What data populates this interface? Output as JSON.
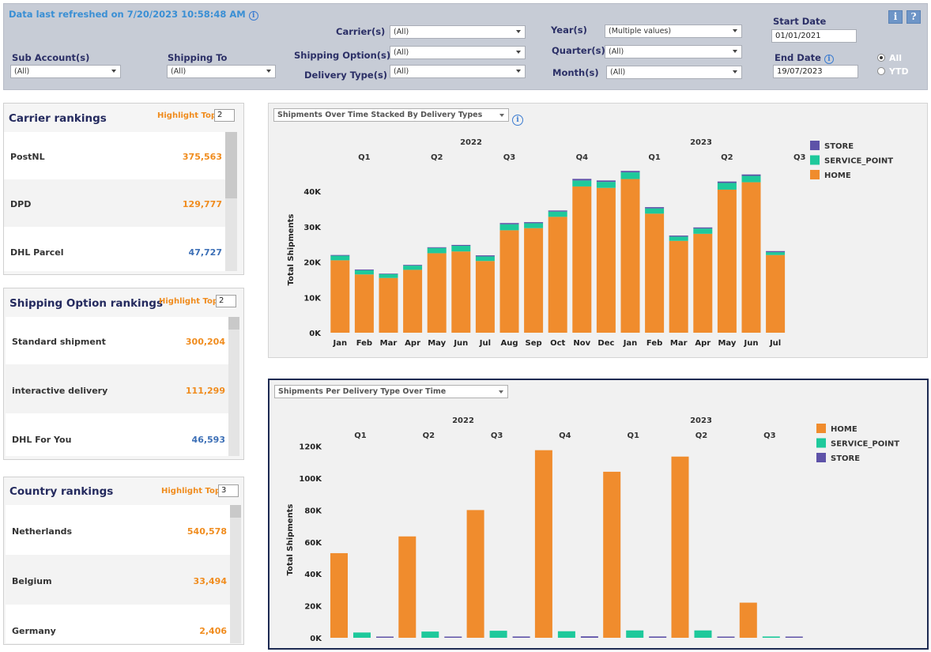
{
  "filters": {
    "refresh_text": "Data last refreshed on 7/20/2023 10:58:48 AM",
    "sub_account": {
      "label": "Sub Account(s)",
      "value": "(All)"
    },
    "shipping_to": {
      "label": "Shipping To",
      "value": "(All)"
    },
    "carrier": {
      "label": "Carrier(s)",
      "value": "(All)"
    },
    "shipping_option": {
      "label": "Shipping Option(s)",
      "value": "(All)"
    },
    "delivery_type": {
      "label": "Delivery Type(s)",
      "value": "(All)"
    },
    "year": {
      "label": "Year(s)",
      "value": "(Multiple values)"
    },
    "quarter": {
      "label": "Quarter(s)",
      "value": "(All)"
    },
    "month": {
      "label": "Month(s)",
      "value": "(All)"
    },
    "start_date": {
      "label": "Start Date",
      "value": "01/01/2021"
    },
    "end_date": {
      "label": "End Date",
      "value": "19/07/2023"
    },
    "period_options": [
      "All",
      "YTD"
    ],
    "period_selected": "All",
    "info_button": "i",
    "help_button": "?"
  },
  "carrier_rankings": {
    "title": "Carrier rankings",
    "highlight_label": "Highlight Top",
    "highlight_value": "2",
    "rows": [
      {
        "name": "PostNL",
        "value": "375,563",
        "color": "#f08c1e"
      },
      {
        "name": "DPD",
        "value": "129,777",
        "color": "#f08c1e"
      },
      {
        "name": "DHL Parcel",
        "value": "47,727",
        "color": "#3c6fb6"
      }
    ]
  },
  "shipping_option_rankings": {
    "title": "Shipping Option  rankings",
    "highlight_label": "Highlight Top",
    "highlight_value": "2",
    "rows": [
      {
        "name": "Standard shipment",
        "value": "300,204",
        "color": "#f08c1e"
      },
      {
        "name": "interactive delivery",
        "value": "111,299",
        "color": "#f08c1e"
      },
      {
        "name": "DHL For You",
        "value": "46,593",
        "color": "#3c6fb6"
      }
    ]
  },
  "country_rankings": {
    "title": "Country rankings",
    "highlight_label": "Highlight Top",
    "highlight_value": "3",
    "rows": [
      {
        "name": "Netherlands",
        "value": "540,578",
        "color": "#f08c1e"
      },
      {
        "name": "Belgium",
        "value": "33,494",
        "color": "#f08c1e"
      },
      {
        "name": "Germany",
        "value": "2,406",
        "color": "#f08c1e"
      }
    ]
  },
  "colors": {
    "HOME": "#f08c2d",
    "SERVICE_POINT": "#1ec99b",
    "STORE": "#5e52a8"
  },
  "chart_data": [
    {
      "type": "bar",
      "stacked": true,
      "selector": "Shipments Over Time Stacked By Delivery Types",
      "ylabel": "Total Shipments",
      "years": [
        {
          "label": "2022",
          "from": 0,
          "to": 11
        },
        {
          "label": "2023",
          "from": 12,
          "to": 18
        }
      ],
      "quarters": [
        "Q1",
        "Q2",
        "Q3",
        "Q4",
        "Q1",
        "Q2",
        "Q3"
      ],
      "categories": [
        "Jan",
        "Feb",
        "Mar",
        "Apr",
        "May",
        "Jun",
        "Jul",
        "Aug",
        "Sep",
        "Oct",
        "Nov",
        "Dec",
        "Jan",
        "Feb",
        "Mar",
        "Apr",
        "May",
        "Jun",
        "Jul"
      ],
      "yticks": [
        "0K",
        "10K",
        "20K",
        "30K",
        "40K"
      ],
      "ylim": [
        0,
        47000
      ],
      "legend": [
        "STORE",
        "SERVICE_POINT",
        "HOME"
      ],
      "series": [
        {
          "name": "HOME",
          "values": [
            20500,
            16500,
            15500,
            17800,
            22500,
            23000,
            20300,
            29000,
            29600,
            32800,
            41400,
            41000,
            43500,
            33700,
            26000,
            28000,
            40500,
            42600,
            22000
          ]
        },
        {
          "name": "SERVICE_POINT",
          "values": [
            1300,
            1200,
            1100,
            1200,
            1500,
            1600,
            1300,
            1700,
            1400,
            1500,
            1700,
            1700,
            1900,
            1500,
            1200,
            1500,
            1900,
            1800,
            800
          ]
        },
        {
          "name": "STORE",
          "values": [
            200,
            200,
            150,
            200,
            200,
            250,
            300,
            350,
            300,
            300,
            450,
            400,
            400,
            350,
            300,
            300,
            400,
            400,
            300
          ]
        }
      ]
    },
    {
      "type": "bar",
      "stacked": false,
      "selector": "Shipments Per Delivery Type Over Time",
      "ylabel": "Total Shipments",
      "years": [
        {
          "label": "2022",
          "from": 0,
          "to": 3
        },
        {
          "label": "2023",
          "from": 4,
          "to": 6
        }
      ],
      "categories": [
        "Q1",
        "Q2",
        "Q3",
        "Q4",
        "Q1",
        "Q2",
        "Q3"
      ],
      "yticks": [
        "0K",
        "20K",
        "40K",
        "60K",
        "80K",
        "100K",
        "120K"
      ],
      "ylim": [
        0,
        120000
      ],
      "legend": [
        "HOME",
        "SERVICE_POINT",
        "STORE"
      ],
      "series": [
        {
          "name": "HOME",
          "values": [
            53000,
            63500,
            80000,
            117500,
            104000,
            113500,
            22000
          ]
        },
        {
          "name": "SERVICE_POINT",
          "values": [
            3300,
            3900,
            4400,
            4100,
            4600,
            4600,
            800
          ]
        },
        {
          "name": "STORE",
          "values": [
            400,
            500,
            800,
            900,
            800,
            600,
            300
          ]
        }
      ]
    }
  ]
}
